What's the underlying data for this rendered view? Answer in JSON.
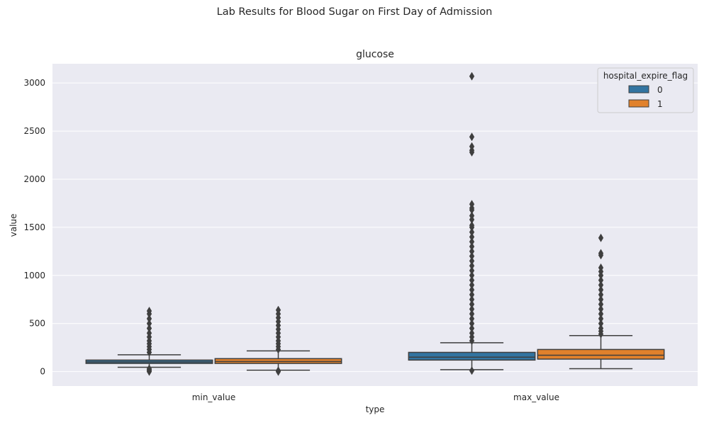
{
  "figure": {
    "suptitle": "Lab Results for Blood Sugar on First Day of Admission"
  },
  "chart_data": {
    "type": "box",
    "title": "glucose",
    "xlabel": "type",
    "ylabel": "value",
    "categories": [
      "min_value",
      "max_value"
    ],
    "ylim": [
      -150,
      3200
    ],
    "yticks": [
      0,
      500,
      1000,
      1500,
      2000,
      2500,
      3000
    ],
    "grid": true,
    "legend": {
      "title": "hospital_expire_flag",
      "position": "top-right"
    },
    "series": [
      {
        "name": "0",
        "color": "#3274a1",
        "boxes": [
          {
            "category": "min_value",
            "whisker_low": 45,
            "q1": 85,
            "median": 100,
            "q3": 120,
            "whisker_high": 175,
            "outliers": [
              0,
              10,
              20,
              30,
              200,
              230,
              260,
              290,
              320,
              360,
              400,
              450,
              500,
              550,
              600,
              630
            ]
          },
          {
            "category": "max_value",
            "whisker_low": 20,
            "q1": 120,
            "median": 150,
            "q3": 200,
            "whisker_high": 300,
            "outliers": [
              10,
              320,
              360,
              400,
              450,
              500,
              550,
              600,
              650,
              700,
              750,
              800,
              850,
              900,
              950,
              1000,
              1050,
              1100,
              1150,
              1200,
              1250,
              1300,
              1350,
              1400,
              1450,
              1500,
              1520,
              1580,
              1620,
              1680,
              1700,
              1740,
              2280,
              2300,
              2340,
              2440,
              3070
            ]
          }
        ]
      },
      {
        "name": "1",
        "color": "#e1812c",
        "boxes": [
          {
            "category": "min_value",
            "whisker_low": 15,
            "q1": 85,
            "median": 105,
            "q3": 135,
            "whisker_high": 215,
            "outliers": [
              0,
              10,
              230,
              260,
              290,
              320,
              360,
              400,
              440,
              480,
              520,
              560,
              600,
              640
            ]
          },
          {
            "category": "max_value",
            "whisker_low": 30,
            "q1": 130,
            "median": 170,
            "q3": 230,
            "whisker_high": 375,
            "outliers": [
              390,
              420,
              450,
              500,
              550,
              600,
              650,
              700,
              750,
              800,
              850,
              900,
              950,
              1000,
              1040,
              1080,
              1210,
              1230,
              1390
            ]
          }
        ]
      }
    ]
  }
}
